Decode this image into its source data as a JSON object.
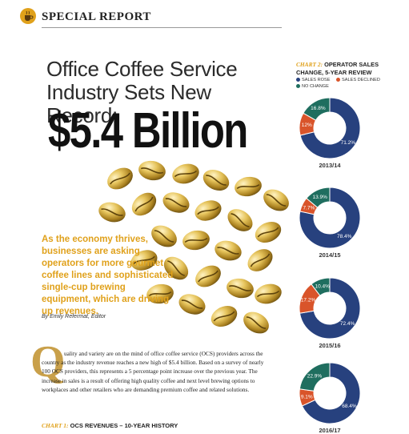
{
  "header": {
    "title": "SPECIAL REPORT"
  },
  "article": {
    "headline_line1": "Office Coffee Service",
    "headline_line2": "Industry Sets New Record:",
    "big_number": "$5.4 Billion",
    "deck": "As the economy thrives, businesses are asking operators for more gourmet coffee lines and sophisticated single-cup brewing equipment, which are driving up revenues.",
    "byline": "By Emily Refermat, Editor",
    "dropcap": "Q",
    "body": "uality and variety are on the mind of office coffee service (OCS) providers across the country as the industry revenue reaches a new high of $5.4 billion. Based on a survey of nearly 100 OCS providers, this represents a 5 percentage point increase over the previous year. The increase in sales is a result of offering high quality coffee and next level brewing options to workplaces and other retailers who are demanding premium coffee and related solutions."
  },
  "chart1_label": {
    "prefix": "CHART 1:",
    "text": " OCS REVENUES – 10-YEAR HISTORY"
  },
  "chart2_title": {
    "prefix": "CHART 2:",
    "text": " OPERATOR SALES CHANGE, 5-YEAR REVIEW"
  },
  "chart_data": {
    "type": "pie",
    "title": "OPERATOR SALES CHANGE, 5-YEAR REVIEW",
    "legend": [
      "SALES ROSE",
      "SALES DECLINED",
      "NO CHANGE"
    ],
    "colors": {
      "SALES ROSE": "#27417e",
      "SALES DECLINED": "#d9542a",
      "NO CHANGE": "#1f6e5f"
    },
    "panels": [
      {
        "year": "2013/14",
        "values": {
          "SALES ROSE": 71.2,
          "SALES DECLINED": 12,
          "NO CHANGE": 16.8
        },
        "labels": {
          "SALES ROSE": "71.2%",
          "SALES DECLINED": "12%",
          "NO CHANGE": "16.8%"
        }
      },
      {
        "year": "2014/15",
        "values": {
          "SALES ROSE": 78.4,
          "SALES DECLINED": 7.7,
          "NO CHANGE": 13.9
        },
        "labels": {
          "SALES ROSE": "78.4%",
          "SALES DECLINED": "7.7%",
          "NO CHANGE": "13.9%"
        }
      },
      {
        "year": "2015/16",
        "values": {
          "SALES ROSE": 72.4,
          "SALES DECLINED": 17.2,
          "NO CHANGE": 10.4
        },
        "labels": {
          "SALES ROSE": "72.4%",
          "SALES DECLINED": "17.2%",
          "NO CHANGE": "10.4%"
        }
      },
      {
        "year": "2016/17",
        "values": {
          "SALES ROSE": 68.4,
          "SALES DECLINED": 9.1,
          "NO CHANGE": 22.9
        },
        "labels": {
          "SALES ROSE": "68.4%",
          "SALES DECLINED": "9.1%",
          "NO CHANGE": "22.9%"
        }
      }
    ]
  }
}
